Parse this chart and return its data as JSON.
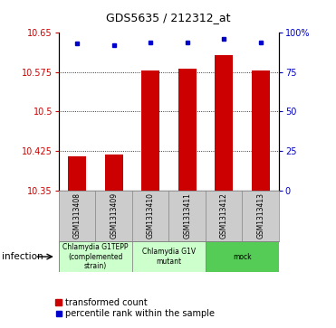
{
  "title": "GDS5635 / 212312_at",
  "samples": [
    "GSM1313408",
    "GSM1313409",
    "GSM1313410",
    "GSM1313411",
    "GSM1313412",
    "GSM1313413"
  ],
  "bar_values": [
    10.415,
    10.418,
    10.578,
    10.582,
    10.608,
    10.578
  ],
  "dot_values": [
    93,
    92,
    94,
    94,
    96,
    94
  ],
  "ymin": 10.35,
  "ymax": 10.65,
  "yticks": [
    10.35,
    10.425,
    10.5,
    10.575,
    10.65
  ],
  "ytick_labels": [
    "10.35",
    "10.425",
    "10.5",
    "10.575",
    "10.65"
  ],
  "y2min": 0,
  "y2max": 100,
  "y2ticks": [
    0,
    25,
    50,
    75,
    100
  ],
  "y2tick_labels": [
    "0",
    "25",
    "50",
    "75",
    "100%"
  ],
  "bar_color": "#cc0000",
  "dot_color": "#0000cc",
  "groups": [
    {
      "label": "Chlamydia G1TEPP\n(complemented\nstrain)",
      "start": 0,
      "end": 2,
      "color": "#ccffcc"
    },
    {
      "label": "Chlamydia G1V\nmutant",
      "start": 2,
      "end": 4,
      "color": "#ccffcc"
    },
    {
      "label": "mock",
      "start": 4,
      "end": 6,
      "color": "#55cc55"
    }
  ],
  "group_row_label": "infection",
  "legend_bar_label": "transformed count",
  "legend_dot_label": "percentile rank within the sample",
  "bar_base": 10.35,
  "xlabel_color": "#cc0000",
  "y2label_color": "#0000cc",
  "sample_box_color": "#cccccc",
  "bar_width": 0.5
}
